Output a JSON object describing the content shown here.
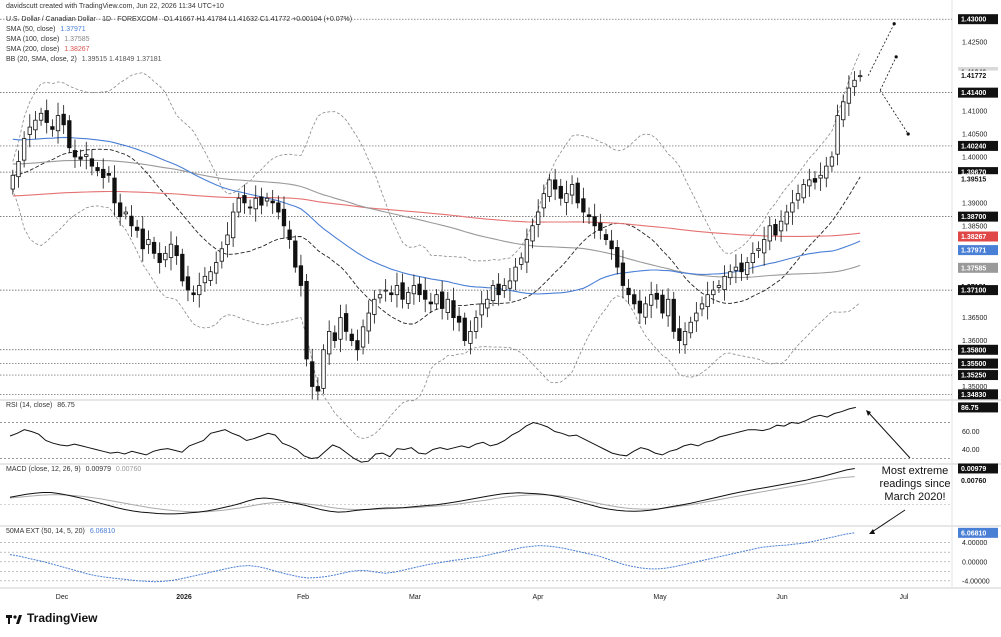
{
  "credit": "davidscutt created with TradingView.com, Jun 22, 2026 11:34 UTC+10",
  "brand": "TradingView",
  "legend": {
    "symbol": "U.S. Dollar / Canadian Dollar · 1D · FOREXCOM",
    "ohlc": "O1.41667 H1.41784 L1.41632 C1.41772 +0.00104 (+0.07%)",
    "sma50": {
      "label": "SMA (50, close)",
      "value": "1.37971",
      "color": "#4a7fd6"
    },
    "sma100": {
      "label": "SMA (100, close)",
      "value": "1.37585",
      "color": "#8a8a8a"
    },
    "sma200": {
      "label": "SMA (200, close)",
      "value": "1.38267",
      "color": "#d9534f"
    },
    "bb": {
      "label": "BB (20, SMA, close, 2)",
      "values": "1.39515  1.41849  1.37181"
    }
  },
  "rsi_legend": {
    "label": "RSI (14, close)",
    "value": "86.75"
  },
  "macd_legend": {
    "label": "MACD (close, 12, 26, 9)",
    "value1": "0.00979",
    "value2": "0.00760"
  },
  "ext_legend": {
    "label": "50MA EXT (50, 14, 5, 20)",
    "value": "6.06810"
  },
  "annotation": "Most extreme readings since March 2020!",
  "colors": {
    "up": "#ffffff",
    "down": "#111111",
    "sma50": "#4a7fd6",
    "sma100": "#9a9a9a",
    "sma200": "#e57373",
    "bb": "#8a8a8a",
    "ext": "#4a7fd6",
    "tag_dark": "#111111",
    "tag_blue": "#4a7fd6",
    "tag_red": "#e04848",
    "tag_gray": "#9a9a9a"
  },
  "chart_data": [
    {
      "type": "candlestick",
      "name": "U.S. Dollar / Canadian Dollar",
      "ylim": [
        1.3475,
        1.432
      ],
      "x_ticks": [
        "Dec",
        "2026",
        "Feb",
        "Mar",
        "Apr",
        "May",
        "Jun",
        "Jul"
      ],
      "y_ticks": [
        "1.42500",
        "1.41000",
        "1.40500",
        "1.40000",
        "1.39000",
        "1.38500",
        "1.36500",
        "1.36000",
        "1.35000"
      ],
      "y_tick_values": [
        1.425,
        1.41,
        1.405,
        1.4,
        1.39,
        1.385,
        1.365,
        1.36,
        1.35
      ],
      "levels": [
        1.43,
        1.414,
        1.4024,
        1.3967,
        1.387,
        1.371,
        1.358,
        1.355,
        1.3525,
        1.3483
      ],
      "level_labels": [
        "1.43000",
        "1.41400",
        "1.40240",
        "1.39670",
        "1.38700",
        "1.37100",
        "1.35800",
        "1.35500",
        "1.35250",
        "1.34830"
      ],
      "price_tags": [
        {
          "label": "1.43000",
          "value": 1.43,
          "style": "dark"
        },
        {
          "label": "1.41849",
          "value": 1.41849,
          "style": "gray"
        },
        {
          "label": "1.41772",
          "value": 1.41772,
          "style": "plain"
        },
        {
          "label": "1.41400",
          "value": 1.414,
          "style": "dark"
        },
        {
          "label": "1.40240",
          "value": 1.4024,
          "style": "dark"
        },
        {
          "label": "1.39670",
          "value": 1.3967,
          "style": "dark"
        },
        {
          "label": "1.39515",
          "value": 1.39515,
          "style": "plain"
        },
        {
          "label": "1.38700",
          "value": 1.387,
          "style": "dark"
        },
        {
          "label": "1.38267",
          "value": 1.38267,
          "style": "red"
        },
        {
          "label": "1.37971",
          "value": 1.37971,
          "style": "blue"
        },
        {
          "label": "1.37585",
          "value": 1.37585,
          "style": "gray"
        },
        {
          "label": "1.37181",
          "value": 1.37181,
          "style": "plain"
        },
        {
          "label": "1.37100",
          "value": 1.371,
          "style": "dark"
        },
        {
          "label": "1.35800",
          "value": 1.358,
          "style": "dark"
        },
        {
          "label": "1.35500",
          "value": 1.355,
          "style": "dark"
        },
        {
          "label": "1.35250",
          "value": 1.3525,
          "style": "dark"
        },
        {
          "label": "1.34830",
          "value": 1.3483,
          "style": "dark"
        }
      ],
      "close": [
        1.396,
        1.399,
        1.404,
        1.4065,
        1.408,
        1.4095,
        1.4075,
        1.406,
        1.409,
        1.407,
        1.402,
        1.4,
        1.3995,
        1.4005,
        1.398,
        1.397,
        1.3955,
        1.396,
        1.39,
        1.387,
        1.388,
        1.385,
        1.384,
        1.38,
        1.382,
        1.379,
        1.377,
        1.379,
        1.381,
        1.3785,
        1.373,
        1.371,
        1.37,
        1.372,
        1.374,
        1.375,
        1.377,
        1.38,
        1.383,
        1.388,
        1.391,
        1.39,
        1.389,
        1.391,
        1.3895,
        1.391,
        1.39,
        1.388,
        1.385,
        1.382,
        1.376,
        1.372,
        1.356,
        1.35,
        1.349,
        1.358,
        1.362,
        1.36,
        1.365,
        1.362,
        1.36,
        1.358,
        1.363,
        1.366,
        1.369,
        1.37,
        1.371,
        1.37,
        1.372,
        1.369,
        1.3705,
        1.372,
        1.37,
        1.369,
        1.368,
        1.37,
        1.367,
        1.369,
        1.365,
        1.364,
        1.36,
        1.362,
        1.365,
        1.368,
        1.369,
        1.372,
        1.37,
        1.372,
        1.373,
        1.376,
        1.378,
        1.382,
        1.385,
        1.388,
        1.392,
        1.395,
        1.393,
        1.391,
        1.392,
        1.394,
        1.39,
        1.388,
        1.387,
        1.385,
        1.384,
        1.382,
        1.38,
        1.376,
        1.372,
        1.37,
        1.368,
        1.366,
        1.368,
        1.37,
        1.369,
        1.366,
        1.369,
        1.362,
        1.36,
        1.362,
        1.364,
        1.366,
        1.368,
        1.37,
        1.371,
        1.372,
        1.374,
        1.375,
        1.376,
        1.375,
        1.377,
        1.379,
        1.38,
        1.382,
        1.385,
        1.383,
        1.386,
        1.388,
        1.39,
        1.392,
        1.394,
        1.395,
        1.3945,
        1.396,
        1.398,
        1.4,
        1.409,
        1.412,
        1.415,
        1.4167,
        1.4177
      ],
      "high_offset_note": "daily candles; opens derived from previous close"
    },
    {
      "type": "line",
      "name": "RSI (14, close)",
      "ylim": [
        25,
        95
      ],
      "y_ticks": [
        "60.00",
        "40.00"
      ],
      "y_tick_values": [
        60,
        40
      ],
      "levels": [
        70,
        30
      ],
      "last_tag": "86.75",
      "values": [
        55,
        58,
        62,
        60,
        57,
        50,
        47,
        45,
        44,
        46,
        44,
        42,
        40,
        38,
        36,
        37,
        35,
        38,
        36,
        34,
        38,
        40,
        41,
        39,
        37,
        44,
        47,
        50,
        58,
        60,
        62,
        58,
        55,
        50,
        52,
        55,
        58,
        56,
        47,
        44,
        40,
        33,
        30,
        31,
        38,
        45,
        42,
        36,
        30,
        26,
        27,
        35,
        36,
        32,
        41,
        40,
        42,
        36,
        35,
        40,
        42,
        40,
        42,
        44,
        42,
        46,
        48,
        44,
        46,
        50,
        56,
        60,
        66,
        70,
        68,
        65,
        60,
        58,
        55,
        56,
        52,
        48,
        44,
        40,
        36,
        34,
        33,
        38,
        42,
        40,
        36,
        34,
        38,
        40,
        44,
        46,
        44,
        48,
        50,
        54,
        56,
        58,
        60,
        62,
        62,
        61,
        63,
        67,
        66,
        70,
        69,
        72,
        76,
        78,
        76,
        80,
        82,
        85,
        86.75
      ]
    },
    {
      "type": "line",
      "name": "MACD (close, 12, 26, 9)",
      "ylim": [
        -0.0055,
        0.011
      ],
      "last_tags": [
        "0.00979",
        "0.00760"
      ],
      "macd": [
        0.002,
        0.0024,
        0.0028,
        0.0031,
        0.0033,
        0.0033,
        0.003,
        0.0026,
        0.0021,
        0.0016,
        0.001,
        0.0004,
        -0.0002,
        -0.0008,
        -0.0013,
        -0.0017,
        -0.002,
        -0.0022,
        -0.0024,
        -0.0025,
        -0.0025,
        -0.0024,
        -0.0022,
        -0.002,
        -0.0017,
        -0.0013,
        -0.0008,
        -0.0003,
        0.0003,
        0.001,
        0.0016,
        0.0018,
        0.0016,
        0.0012,
        0.0007,
        0.0003,
        -0.0002,
        -0.0008,
        -0.0014,
        -0.0018,
        -0.002,
        -0.0019,
        -0.0016,
        -0.0014,
        -0.0012,
        -0.001,
        -0.0009,
        -0.0009,
        -0.0008,
        -0.0006,
        -0.0004,
        -0.0002,
        0.0,
        0.0003,
        0.0006,
        0.001,
        0.0014,
        0.0018,
        0.0022,
        0.0026,
        0.0029,
        0.0031,
        0.0032,
        0.0031,
        0.003,
        0.0028,
        0.0025,
        0.0021,
        0.0016,
        0.001,
        0.0004,
        -0.0002,
        -0.0008,
        -0.0012,
        -0.0015,
        -0.0017,
        -0.0018,
        -0.0017,
        -0.0015,
        -0.0012,
        -0.0008,
        -0.0004,
        0.0,
        0.0004,
        0.0009,
        0.0014,
        0.0019,
        0.0024,
        0.0029,
        0.0034,
        0.0038,
        0.0042,
        0.0046,
        0.005,
        0.0054,
        0.0058,
        0.0062,
        0.0066,
        0.0071,
        0.0076,
        0.0082,
        0.0088,
        0.0094,
        0.00979
      ],
      "signal": [
        0.0018,
        0.002,
        0.0022,
        0.0024,
        0.0026,
        0.0027,
        0.0027,
        0.0026,
        0.0024,
        0.0022,
        0.0019,
        0.0016,
        0.0012,
        0.0008,
        0.0004,
        0.0,
        -0.0004,
        -0.0008,
        -0.0011,
        -0.0014,
        -0.0016,
        -0.0018,
        -0.0019,
        -0.0019,
        -0.0019,
        -0.0017,
        -0.0015,
        -0.0012,
        -0.0009,
        -0.0005,
        -0.0001,
        0.0003,
        0.0005,
        0.0006,
        0.0006,
        0.0005,
        0.0003,
        0.0,
        -0.0003,
        -0.0007,
        -0.001,
        -0.0012,
        -0.0013,
        -0.0013,
        -0.0013,
        -0.0012,
        -0.0011,
        -0.001,
        -0.0009,
        -0.0008,
        -0.0007,
        -0.0005,
        -0.0004,
        -0.0002,
        0.0,
        0.0003,
        0.0006,
        0.0009,
        0.0012,
        0.0016,
        0.0019,
        0.0022,
        0.0024,
        0.0026,
        0.0027,
        0.0027,
        0.0026,
        0.0024,
        0.0021,
        0.0017,
        0.0012,
        0.0007,
        0.0002,
        -0.0002,
        -0.0006,
        -0.0009,
        -0.0011,
        -0.0012,
        -0.0012,
        -0.0011,
        -0.0009,
        -0.0006,
        -0.0003,
        0.0,
        0.0004,
        0.0008,
        0.0012,
        0.0016,
        0.002,
        0.0024,
        0.0028,
        0.0032,
        0.0036,
        0.004,
        0.0044,
        0.0048,
        0.0052,
        0.0056,
        0.006,
        0.0064,
        0.0068,
        0.0072,
        0.0074,
        0.0076
      ]
    },
    {
      "type": "line",
      "name": "50MA EXT (50, 14, 5, 20)",
      "ylim": [
        -5.5,
        7.5
      ],
      "y_ticks": [
        "4.00000",
        "0.00000",
        "-4.00000"
      ],
      "y_tick_values": [
        4,
        0,
        -4
      ],
      "last_tag": "6.06810",
      "values": [
        1.5,
        1.2,
        0.8,
        0.4,
        0.0,
        -0.5,
        -1.0,
        -1.5,
        -2.0,
        -2.5,
        -2.9,
        -3.2,
        -3.4,
        -3.6,
        -3.8,
        -4.0,
        -4.1,
        -4.2,
        -4.1,
        -3.9,
        -3.6,
        -3.2,
        -2.8,
        -2.4,
        -2.0,
        -1.6,
        -1.2,
        -0.9,
        -0.8,
        -1.0,
        -1.4,
        -1.9,
        -2.4,
        -2.8,
        -3.2,
        -3.4,
        -3.3,
        -3.1,
        -2.8,
        -2.4,
        -2.0,
        -1.8,
        -1.9,
        -2.2,
        -2.4,
        -2.2,
        -1.8,
        -1.4,
        -1.0,
        -0.6,
        -0.3,
        0.0,
        0.3,
        0.5,
        0.8,
        1.0,
        1.4,
        1.8,
        2.2,
        2.6,
        3.0,
        3.2,
        3.4,
        3.3,
        3.1,
        2.8,
        2.4,
        2.0,
        1.6,
        1.2,
        0.6,
        0.0,
        -0.6,
        -1.0,
        -1.3,
        -1.5,
        -1.5,
        -1.3,
        -1.0,
        -0.6,
        -0.2,
        0.2,
        0.6,
        1.0,
        1.4,
        1.8,
        2.2,
        2.6,
        3.0,
        3.2,
        3.4,
        3.5,
        3.7,
        3.9,
        4.2,
        4.6,
        5.0,
        5.4,
        5.8,
        6.0681
      ]
    }
  ]
}
